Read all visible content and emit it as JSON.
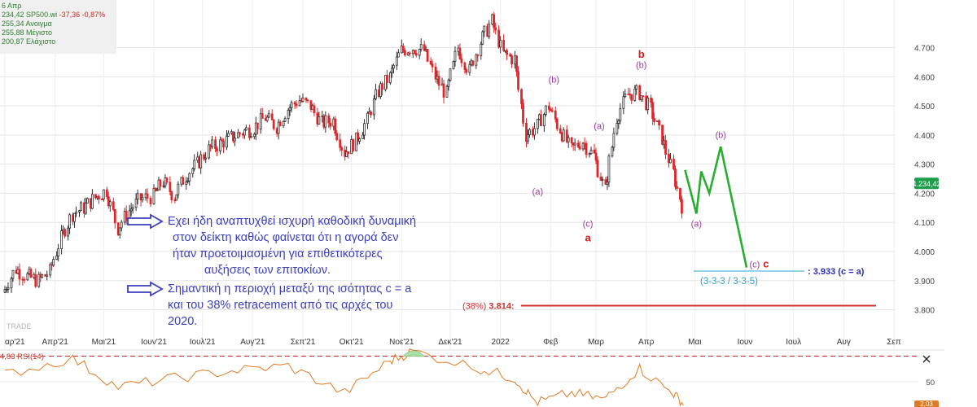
{
  "info": {
    "date": "6 Απρ",
    "line1_value": "234,42",
    "line1_symbol": "SP500.wi",
    "line1_change": "-37,36 -0,87%",
    "line2": "255,34 Ανοιγμα",
    "line3": "255,88 Μέγιστο",
    "line4": "200,87 Ελάχιστο"
  },
  "annotation_main": {
    "lines": [
      "Εχει ήδη αναπτυχθεί ισχυρή καθοδική δυναμική",
      "στον δείκτη καθώς φαίνεται ότι η αγορά δεν",
      "ήταν προετοιμασμένη για επιθετικότερες",
      "αυξήσεις των επιτοκίων."
    ]
  },
  "annotation_second": {
    "lines": [
      "Σημαντική η περιοχή μεταξύ της ισότητας c = a",
      "και του 38% retracement από τις αρχές του",
      "2020."
    ]
  },
  "target_label": ": 3.933 (c = a)",
  "target_structure": "(3-3-3 / 3-3-5)",
  "retracement_pct": "(38%)",
  "retracement_value": "3.814:",
  "price_badge": "4.234,42",
  "watermark": "TRADE",
  "rsi_label": "4,83 RSI(14)",
  "rsi_tick": "50",
  "rsi_corner": "2,03",
  "colors": {
    "up_candle": "#2f2f2f",
    "down_candle": "#e0262a",
    "wave_label": "#9b3aa0",
    "wave_label_red": "#d81b1b",
    "projection": "#27ae2f",
    "retracement_line": "#d32f2f",
    "target_line": "#2aa8d9",
    "annotation": "#3b3fbf",
    "arrow": "#3b3fbf",
    "rsi": "#e07b24",
    "badge": "#1e9e4a"
  },
  "chart_data": {
    "type": "line",
    "title": "",
    "xlabel": "",
    "ylabel": "",
    "ylim": [
      3740,
      4830
    ],
    "yticks": [
      3800,
      3900,
      4000,
      4100,
      4200,
      4300,
      4400,
      4500,
      4600,
      4700
    ],
    "ytick_labels": [
      "3.800",
      "3.900",
      "4.000",
      "4.100",
      "4.200",
      "4.300",
      "4.400",
      "4.500",
      "4.600",
      "4.700"
    ],
    "x_months": [
      "Μαρ'21",
      "Απρ'21",
      "Μαι'21",
      "Ιουν'21",
      "Ιουλ'21",
      "Αυγ'21",
      "Σεπ'21",
      "Οκτ'21",
      "Νοε'21",
      "Δεκ'21",
      "2022",
      "Φεβ",
      "Μαρ",
      "Απρ",
      "Μαι",
      "Ιουν",
      "Ιουλ",
      "Αυγ",
      "Σεπ"
    ],
    "x_month_labels": [
      "αρ'21",
      "Απρ'21",
      "Μαι'21",
      "Ιουν'21",
      "Ιουλ'21",
      "Αυγ'21",
      "Σεπ'21",
      "Οκτ'21",
      "Νοε'21",
      "Δεκ'21",
      "2022",
      "Φεβ",
      "Μαρ",
      "Απρ",
      "Μαι",
      "Ιουν",
      "Ιουλ",
      "Αυγ",
      "Σεπ"
    ],
    "series": [
      {
        "values": [
          [
            "2021-03-01",
            3870
          ],
          [
            "2021-03-08",
            3940
          ],
          [
            "2021-03-15",
            3915
          ],
          [
            "2021-03-22",
            3900
          ],
          [
            "2021-03-29",
            3930
          ],
          [
            "2021-04-05",
            4045
          ],
          [
            "2021-04-12",
            4130
          ],
          [
            "2021-04-19",
            4150
          ],
          [
            "2021-04-26",
            4185
          ],
          [
            "2021-05-03",
            4210
          ],
          [
            "2021-05-10",
            4080
          ],
          [
            "2021-05-17",
            4140
          ],
          [
            "2021-05-24",
            4180
          ],
          [
            "2021-06-01",
            4190
          ],
          [
            "2021-06-07",
            4240
          ],
          [
            "2021-06-14",
            4190
          ],
          [
            "2021-06-21",
            4260
          ],
          [
            "2021-06-28",
            4300
          ],
          [
            "2021-07-05",
            4350
          ],
          [
            "2021-07-12",
            4370
          ],
          [
            "2021-07-19",
            4390
          ],
          [
            "2021-07-26",
            4410
          ],
          [
            "2021-08-02",
            4425
          ],
          [
            "2021-08-09",
            4460
          ],
          [
            "2021-08-16",
            4430
          ],
          [
            "2021-08-23",
            4490
          ],
          [
            "2021-08-30",
            4520
          ],
          [
            "2021-09-06",
            4500
          ],
          [
            "2021-09-13",
            4440
          ],
          [
            "2021-09-20",
            4450
          ],
          [
            "2021-09-27",
            4340
          ],
          [
            "2021-10-04",
            4380
          ],
          [
            "2021-10-11",
            4450
          ],
          [
            "2021-10-18",
            4550
          ],
          [
            "2021-10-25",
            4600
          ],
          [
            "2021-11-01",
            4690
          ],
          [
            "2021-11-08",
            4700
          ],
          [
            "2021-11-15",
            4690
          ],
          [
            "2021-11-22",
            4600
          ],
          [
            "2021-11-29",
            4540
          ],
          [
            "2021-12-06",
            4700
          ],
          [
            "2021-12-13",
            4620
          ],
          [
            "2021-12-20",
            4720
          ],
          [
            "2021-12-27",
            4790
          ],
          [
            "2022-01-03",
            4680
          ],
          [
            "2022-01-10",
            4660
          ],
          [
            "2022-01-17",
            4400
          ],
          [
            "2022-01-24",
            4430
          ],
          [
            "2022-01-31",
            4500
          ],
          [
            "2022-02-07",
            4420
          ],
          [
            "2022-02-14",
            4350
          ],
          [
            "2022-02-21",
            4380
          ],
          [
            "2022-02-28",
            4330
          ],
          [
            "2022-03-07",
            4210
          ],
          [
            "2022-03-14",
            4460
          ],
          [
            "2022-03-21",
            4540
          ],
          [
            "2022-03-28",
            4545
          ],
          [
            "2022-04-04",
            4490
          ],
          [
            "2022-04-11",
            4390
          ],
          [
            "2022-04-18",
            4270
          ],
          [
            "2022-04-25",
            4130
          ]
        ]
      },
      {
        "name": "projection",
        "values": [
          [
            "2022-04-25",
            4280
          ],
          [
            "2022-05-02",
            4130
          ],
          [
            "2022-05-05",
            4275
          ],
          [
            "2022-05-10",
            4200
          ],
          [
            "2022-05-17",
            4360
          ],
          [
            "2022-06-02",
            3945
          ]
        ]
      },
      {
        "name": "RSI(14)",
        "values": [
          [
            "2021-03-01",
            55
          ],
          [
            "2021-04-12",
            68
          ],
          [
            "2021-05-10",
            45
          ],
          [
            "2021-06-14",
            52
          ],
          [
            "2021-07-19",
            58
          ],
          [
            "2021-08-23",
            62
          ],
          [
            "2021-09-27",
            40
          ],
          [
            "2021-10-25",
            66
          ],
          [
            "2021-11-08",
            74
          ],
          [
            "2021-12-20",
            60
          ],
          [
            "2022-01-10",
            52
          ],
          [
            "2022-01-24",
            32
          ],
          [
            "2022-02-14",
            40
          ],
          [
            "2022-03-07",
            35
          ],
          [
            "2022-03-28",
            60
          ],
          [
            "2022-04-18",
            40
          ],
          [
            "2022-04-25",
            30
          ]
        ]
      }
    ],
    "annotations": [
      {
        "text": "(a)",
        "date": "2022-01-24",
        "value": 4195
      },
      {
        "text": "(b)",
        "date": "2022-02-03",
        "value": 4580
      },
      {
        "text": "(c)",
        "date": "2022-02-24",
        "value": 4085
      },
      {
        "text": "a",
        "date": "2022-02-24",
        "value": 4035
      },
      {
        "text": "(a)",
        "date": "2022-03-03",
        "value": 4420
      },
      {
        "text": "b",
        "date": "2022-03-29",
        "value": 4665
      },
      {
        "text": "(b)",
        "date": "2022-03-29",
        "value": 4630
      },
      {
        "text": "(a)",
        "date": "2022-05-02",
        "value": 4085
      },
      {
        "text": "(b)",
        "date": "2022-05-17",
        "value": 4390
      },
      {
        "text": "(c)",
        "date": "2022-06-07",
        "value": 3945
      },
      {
        "text": "c",
        "date": "2022-06-14",
        "value": 3945
      }
    ],
    "levels": [
      {
        "name": "c = a",
        "value": 3933
      },
      {
        "name": "38% retracement",
        "value": 3814
      }
    ],
    "rsi_ylim": [
      30,
      75
    ],
    "rsi_reference": 70,
    "grid": true
  }
}
